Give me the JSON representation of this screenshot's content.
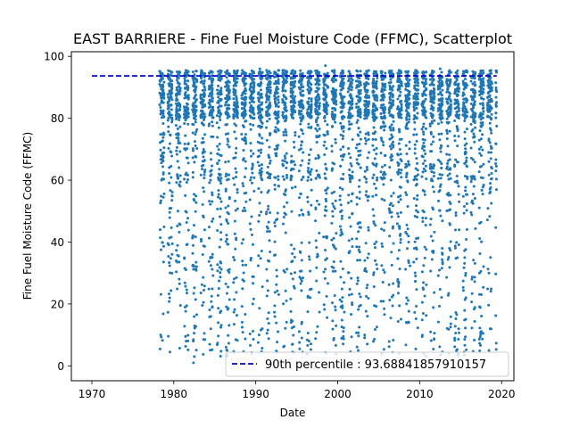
{
  "chart_data": {
    "type": "scatter",
    "title": "EAST BARRIERE - Fine Fuel Moisture Code (FFMC), Scatterplot",
    "xlabel": "Date",
    "ylabel": "Fine Fuel Moisture Code (FFMC)",
    "xlim": [
      1967.5,
      2021.5
    ],
    "ylim": [
      -4.8,
      101.5
    ],
    "xticks": [
      1970,
      1980,
      1990,
      2000,
      2010,
      2020
    ],
    "yticks": [
      0,
      20,
      40,
      60,
      80,
      100
    ],
    "grid": false,
    "legend_position": "bottom-right",
    "point_color": "#1f77b4",
    "data_start_year": 1978.2,
    "data_end_year": 2019.4,
    "seasonal_gaps": "Observations are made each fire season (roughly April through October); there are no points between seasons.",
    "series": [
      {
        "kind": "points",
        "description": "Daily FFMC observations, fire seasons 1978-2019",
        "sample": [
          [
            1978.4,
            10
          ],
          [
            1978.5,
            60
          ],
          [
            1978.6,
            88
          ],
          [
            1979.5,
            22
          ],
          [
            1979.6,
            92
          ],
          [
            1980.5,
            50
          ],
          [
            1981.5,
            8
          ],
          [
            1981.6,
            90
          ],
          [
            1982.4,
            1
          ],
          [
            1982.5,
            3
          ],
          [
            1983.5,
            85
          ],
          [
            1985.5,
            25
          ],
          [
            1986.5,
            5
          ],
          [
            1987.5,
            89
          ],
          [
            1990.4,
            10
          ],
          [
            1990.5,
            96
          ],
          [
            1993.6,
            94
          ],
          [
            1994.5,
            7
          ],
          [
            1997.5,
            85
          ],
          [
            1998.5,
            97
          ],
          [
            2002.5,
            5
          ],
          [
            2004.5,
            95
          ],
          [
            2007.5,
            4
          ],
          [
            2010.5,
            94
          ],
          [
            2012.5,
            96
          ],
          [
            2015.5,
            35
          ],
          [
            2018.6,
            12
          ],
          [
            2019.3,
            63
          ]
        ]
      },
      {
        "kind": "hline",
        "name": "90th percentile : 93.68841857910157",
        "y": 93.68841857910157,
        "x_range": [
          1970,
          2019.4
        ],
        "color": "#0000cc",
        "style": "dashed"
      }
    ]
  }
}
